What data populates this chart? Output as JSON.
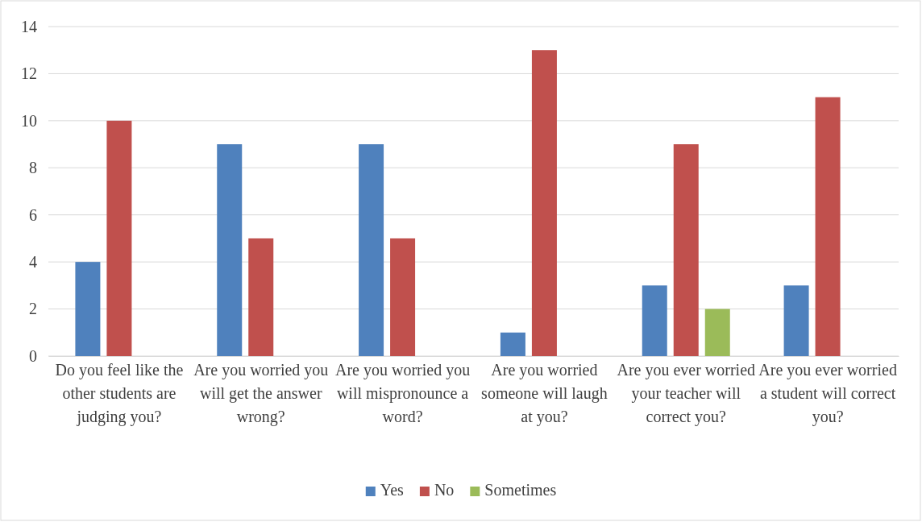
{
  "chart_data": {
    "type": "bar",
    "categories": [
      "Do you feel like the other students are judging you?",
      "Are you worried you will get the answer wrong?",
      "Are you worried you will mispronounce a word?",
      "Are you worried someone will laugh at you?",
      "Are you ever worried your teacher will correct you?",
      "Are you ever worried a student will correct you?"
    ],
    "series": [
      {
        "name": "Yes",
        "color": "#4f81bd",
        "values": [
          4,
          9,
          9,
          1,
          3,
          3
        ]
      },
      {
        "name": "No",
        "color": "#c0504d",
        "values": [
          10,
          5,
          5,
          13,
          9,
          11
        ]
      },
      {
        "name": "Sometimes",
        "color": "#9bbb59",
        "values": [
          null,
          null,
          null,
          null,
          2,
          null
        ]
      }
    ],
    "ylim": [
      0,
      14
    ],
    "yticks": [
      0,
      2,
      4,
      6,
      8,
      10,
      12,
      14
    ],
    "grid": "y",
    "legend": "bottom"
  }
}
